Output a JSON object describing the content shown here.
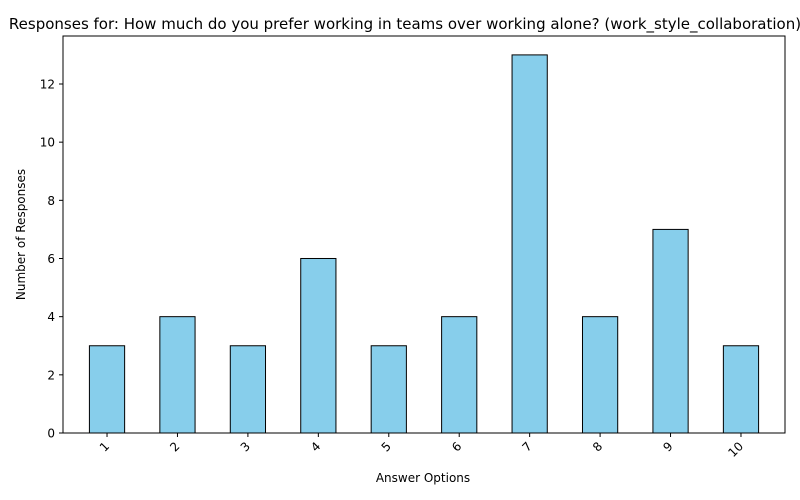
{
  "chart_data": {
    "type": "bar",
    "title": "Responses for: How much do you prefer working in teams over working alone? (work_style_collaboration)",
    "xlabel": "Answer Options",
    "ylabel": "Number of Responses",
    "categories": [
      "1",
      "2",
      "3",
      "4",
      "5",
      "6",
      "7",
      "8",
      "9",
      "10"
    ],
    "values": [
      3,
      4,
      3,
      6,
      3,
      4,
      13,
      4,
      7,
      3
    ],
    "ylim": [
      0,
      13.65
    ],
    "yticks": [
      0,
      2,
      4,
      6,
      8,
      10,
      12
    ],
    "grid": false,
    "bar_color": "#87ceeb",
    "bar_edge_color": "#000000",
    "x_tick_rotation_deg": 45
  }
}
